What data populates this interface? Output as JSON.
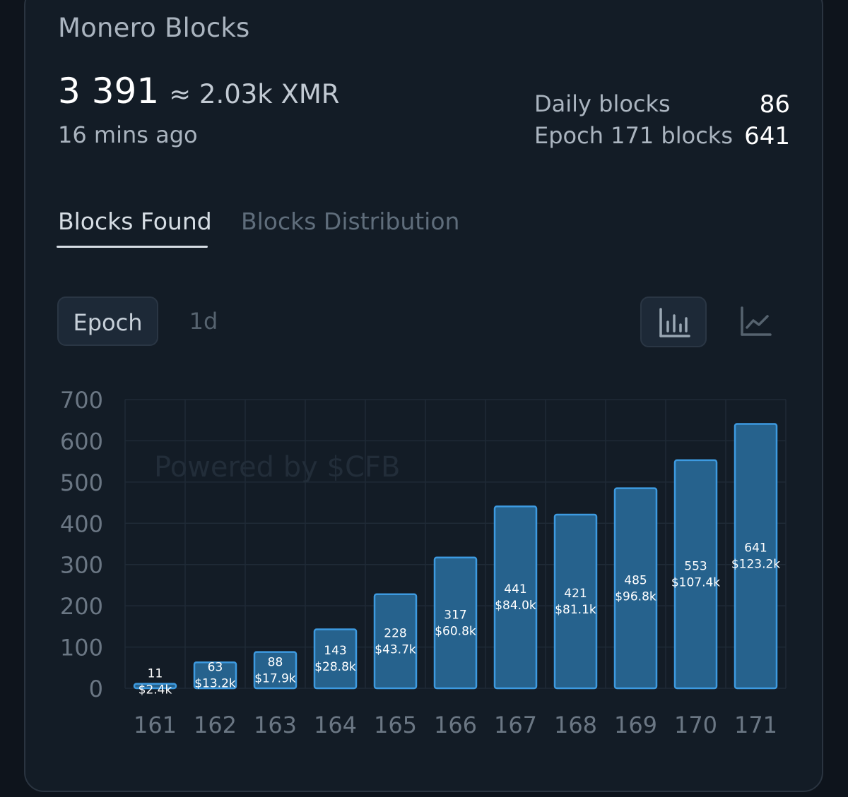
{
  "header": {
    "title": "Monero Blocks",
    "total_blocks": "3 391",
    "approx_xmr": "≈ 2.03k XMR",
    "last_found": "16 mins ago"
  },
  "stats": {
    "daily_label": "Daily blocks",
    "daily_value": "86",
    "epoch_label": "Epoch 171 blocks",
    "epoch_value": "641"
  },
  "tabs": [
    {
      "label": "Blocks Found",
      "active": true
    },
    {
      "label": "Blocks Distribution",
      "active": false
    }
  ],
  "period_toggle": [
    {
      "label": "Epoch",
      "active": true
    },
    {
      "label": "1d",
      "active": false
    }
  ],
  "chart_type_toggle": [
    {
      "icon": "bar-chart-icon",
      "active": true
    },
    {
      "icon": "line-chart-icon",
      "active": false
    }
  ],
  "watermark": "Powered by $CFB",
  "colors": {
    "bar_fill": "#26628d",
    "bar_stroke": "#3d9ae0",
    "accent_text": "#ffffff"
  },
  "chart_data": {
    "type": "bar",
    "categories": [
      "161",
      "162",
      "163",
      "164",
      "165",
      "166",
      "167",
      "168",
      "169",
      "170",
      "171"
    ],
    "values": [
      11,
      63,
      88,
      143,
      228,
      317,
      441,
      421,
      485,
      553,
      641
    ],
    "value_labels": [
      "$2.4k",
      "$13.2k",
      "$17.9k",
      "$28.8k",
      "$43.7k",
      "$60.8k",
      "$84.0k",
      "$81.1k",
      "$96.8k",
      "$107.4k",
      "$123.2k"
    ],
    "ylim": [
      0,
      700
    ],
    "yticks": [
      0,
      100,
      200,
      300,
      400,
      500,
      600,
      700
    ],
    "grid": true,
    "title": "",
    "xlabel": "",
    "ylabel": ""
  }
}
